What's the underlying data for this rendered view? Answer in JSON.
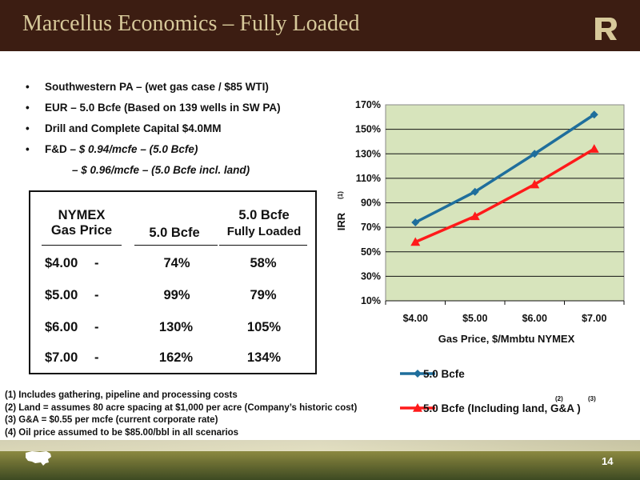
{
  "header": {
    "title": "Marcellus Economics – Fully Loaded",
    "logo": "r-monogram-logo"
  },
  "bullets": [
    {
      "bullet": "•",
      "text": "Southwestern PA – (wet gas case / $85 WTI)"
    },
    {
      "bullet": "•",
      "text": "EUR – 5.0 Bcfe (Based on 139 wells in SW PA)"
    },
    {
      "bullet": "•",
      "text": "Drill and Complete Capital $4.0MM"
    },
    {
      "bullet": "•",
      "prefix": "F&D – ",
      "italic": "$ 0.94/mcfe – (5.0 Bcfe)"
    },
    {
      "bullet": "",
      "prefix": "– ",
      "italic": "$ 0.96/mcfe – (5.0 Bcfe incl. land)"
    }
  ],
  "table": {
    "headers": {
      "col1_line1": "NYMEX",
      "col1_line2": "Gas Price",
      "col2": "5.0 Bcfe",
      "col3_line1": "5.0 Bcfe",
      "col3_line2": "Fully Loaded"
    },
    "rows": [
      {
        "price": "$4.00",
        "dash": "-",
        "base": "74%",
        "loaded": "58%"
      },
      {
        "price": "$5.00",
        "dash": "-",
        "base": "99%",
        "loaded": "79%"
      },
      {
        "price": "$6.00",
        "dash": "-",
        "base": "130%",
        "loaded": "105%"
      },
      {
        "price": "$7.00",
        "dash": "-",
        "base": "162%",
        "loaded": "134%"
      }
    ]
  },
  "footnotes": [
    "(1)  Includes gathering, pipeline and processing costs",
    "(2)  Land = assumes 80 acre spacing at $1,000 per acre (Company’s historic cost)",
    "(3)  G&A = $0.55 per mcfe (current corporate rate)",
    "(4)  Oil price assumed to be $85.00/bbl in all scenarios"
  ],
  "footer": {
    "page_number": "14",
    "map_icon": "us-map-icon"
  },
  "chart_data": {
    "type": "line",
    "categories": [
      "$4.00",
      "$5.00",
      "$6.00",
      "$7.00"
    ],
    "series": [
      {
        "name": "5.0 Bcfe",
        "values": [
          74,
          99,
          130,
          162
        ],
        "color": "#1f6e9c",
        "marker": "diamond"
      },
      {
        "name": "5.0 Bcfe (Including land, G&A )",
        "values": [
          58,
          79,
          105,
          134
        ],
        "color": "#ff1a1a",
        "marker": "triangle"
      }
    ],
    "legend_superscripts": [
      "(2)",
      "(3)"
    ],
    "xlabel": "Gas Price, $/Mmbtu NYMEX",
    "ylabel": "IRR",
    "ylabel_superscript": "(1)",
    "ylim": [
      10,
      170
    ],
    "yticks": [
      "10%",
      "30%",
      "50%",
      "70%",
      "90%",
      "110%",
      "130%",
      "150%",
      "170%"
    ],
    "grid": true,
    "legend_position": "bottom",
    "plot_background": "#d7e4bc"
  }
}
